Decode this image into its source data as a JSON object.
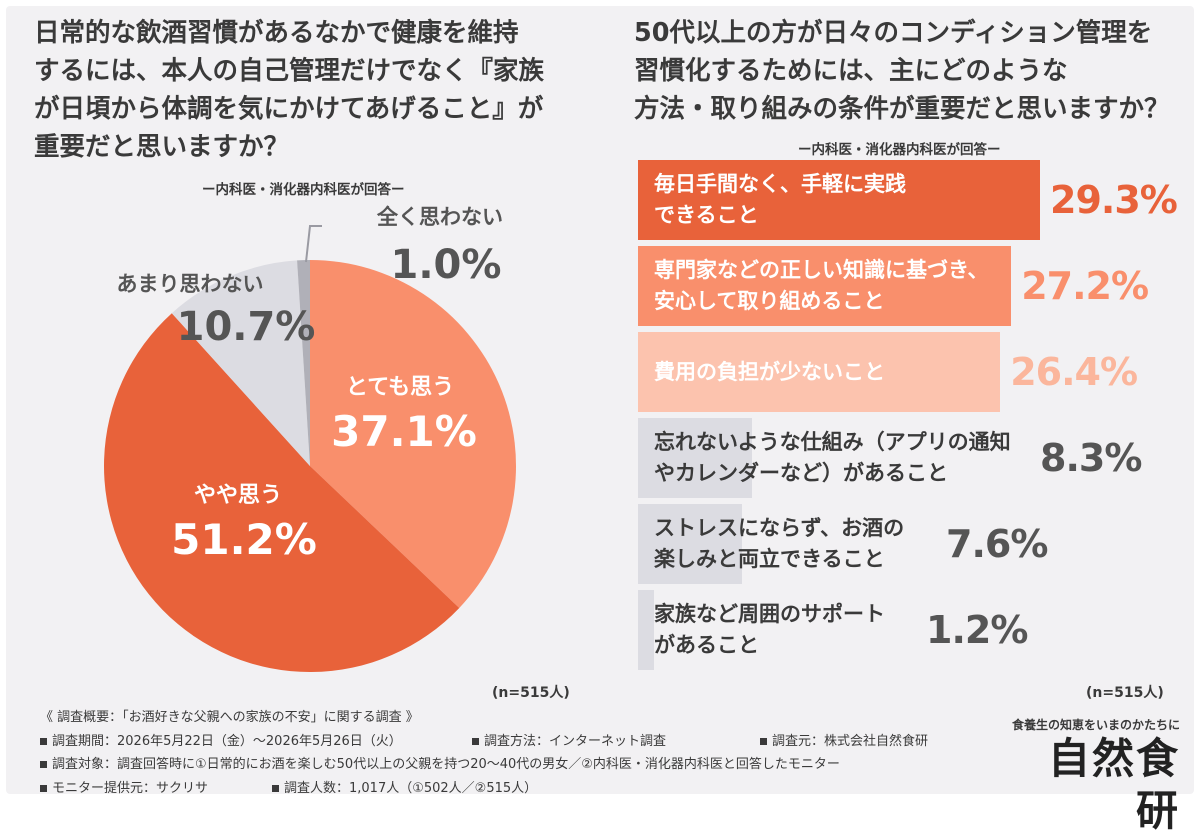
{
  "left_chart": {
    "title_lines": [
      "日常的な飲酒習慣があるなかで健康を維持",
      "するには、本人の自己管理だけでなく『家族",
      "が日頃から体調を気にかけてあげること』が",
      "重要だと思いますか？"
    ],
    "subtitle": "ー内科医・消化器内科医が回答ー",
    "n_label": "(n=515人)"
  },
  "right_chart": {
    "title_lines": [
      "50代以上の方が日々のコンディション管理を",
      "習慣化するためには、主にどのような",
      "方法・取り組みの条件が重要だと思いますか？"
    ],
    "subtitle": "ー内科医・消化器内科医が回答ー",
    "n_label": "(n=515人)"
  },
  "chart_data": [
    {
      "type": "pie",
      "labels": [
        "とても思う",
        "やや思う",
        "あまり思わない",
        "全く思わない"
      ],
      "values": [
        37.1,
        51.2,
        10.7,
        1.0
      ],
      "value_labels": [
        "37.1%",
        "51.2%",
        "10.7%",
        "1.0%"
      ],
      "colors": [
        "#f98f6c",
        "#e8623a",
        "#dcdce2",
        "#b0b0b8"
      ],
      "label_text_colors": [
        "#ffffff",
        "#ffffff",
        "#555555",
        "#555555"
      ]
    },
    {
      "type": "bar",
      "orientation": "horizontal",
      "categories": [
        "毎日手間なく、手軽に実践\nできること",
        "専門家などの正しい知識に基づき、\n安心して取り組めること",
        "費用の負担が少ないこと",
        "忘れないような仕組み（アプリの通知\nやカレンダーなど）があること",
        "ストレスにならず、お酒の\n楽しみと両立できること",
        "家族など周囲のサポート\nがあること"
      ],
      "values": [
        29.3,
        27.2,
        26.4,
        8.3,
        7.6,
        1.2
      ],
      "value_labels": [
        "29.3%",
        "27.2%",
        "26.4%",
        "8.3%",
        "7.6%",
        "1.2%"
      ],
      "colors": [
        "#e8623a",
        "#f98f6c",
        "#fcc3ae",
        "#dcdce2",
        "#dcdce2",
        "#dcdce2"
      ],
      "value_colors": [
        "#e8623a",
        "#f98f6c",
        "#fbb69c",
        "#555555",
        "#555555",
        "#555555"
      ],
      "label_colors": [
        "#ffffff",
        "#ffffff",
        "#ffffff",
        "#3a3a3a",
        "#3a3a3a",
        "#3a3a3a"
      ]
    }
  ],
  "footer": {
    "heading": "《 調査概要：「お酒好きな父親への家族の不安」に関する調査 》",
    "period": "調査期間：2026年5月22日（金）〜2026年5月26日（火）",
    "method": "調査方法：インターネット調査",
    "organizer": "調査元：株式会社自然食研",
    "target": "調査対象：調査回答時に①日常的にお酒を楽しむ50代以上の父親を持つ20〜40代の男女／②内科医・消化器内科医と回答したモニター",
    "provider": "モニター提供元：サクリサ",
    "count": "調査人数：1,017人（①502人／②515人）"
  },
  "brand": {
    "tagline": "食養生の知恵をいまのかたちに",
    "name": "自然食研"
  }
}
